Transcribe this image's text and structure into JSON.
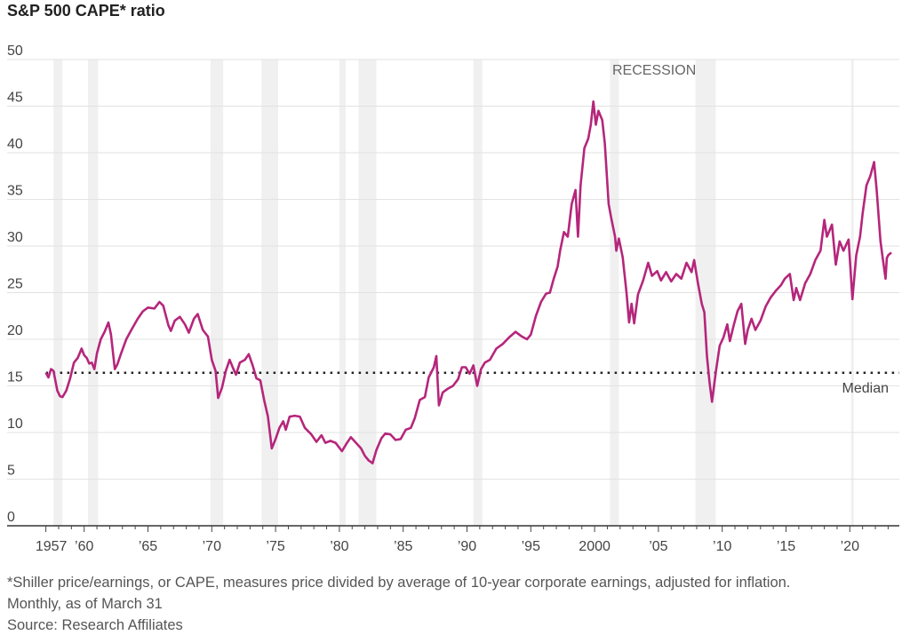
{
  "chart_data": {
    "type": "line",
    "title": "S&P 500 CAPE* ratio",
    "xlabel": "",
    "ylabel": "",
    "xlim": [
      1957,
      2023.25
    ],
    "ylim": [
      0,
      50
    ],
    "y_ticks": [
      0,
      5,
      10,
      15,
      20,
      25,
      30,
      35,
      40,
      45,
      50
    ],
    "x_ticks": [
      {
        "year": 1957,
        "label": "1957"
      },
      {
        "year": 1960,
        "label": "’60"
      },
      {
        "year": 1965,
        "label": "’65"
      },
      {
        "year": 1970,
        "label": "’70"
      },
      {
        "year": 1975,
        "label": "’75"
      },
      {
        "year": 1980,
        "label": "’80"
      },
      {
        "year": 1985,
        "label": "’85"
      },
      {
        "year": 1990,
        "label": "’90"
      },
      {
        "year": 1995,
        "label": "’95"
      },
      {
        "year": 2000,
        "label": "2000"
      },
      {
        "year": 2005,
        "label": "’05"
      },
      {
        "year": 2010,
        "label": "’10"
      },
      {
        "year": 2015,
        "label": "’15"
      },
      {
        "year": 2020,
        "label": "’20"
      }
    ],
    "grid": true,
    "line_color": "#b5267b",
    "median": {
      "value": 16.4,
      "label": "Median"
    },
    "recession_label": "RECESSION",
    "recessions": [
      [
        1957.6,
        1958.3
      ],
      [
        1960.3,
        1961.1
      ],
      [
        1969.9,
        1970.9
      ],
      [
        1973.9,
        1975.2
      ],
      [
        1980.0,
        1980.5
      ],
      [
        1981.5,
        1982.9
      ],
      [
        1990.5,
        1991.2
      ],
      [
        2001.2,
        2001.9
      ],
      [
        2007.9,
        2009.5
      ],
      [
        2020.1,
        2020.3
      ]
    ],
    "series": [
      {
        "points": [
          [
            1957.0,
            16.4
          ],
          [
            1957.2,
            15.9
          ],
          [
            1957.4,
            16.8
          ],
          [
            1957.6,
            16.6
          ],
          [
            1957.9,
            14.5
          ],
          [
            1958.1,
            13.9
          ],
          [
            1958.3,
            13.8
          ],
          [
            1958.6,
            14.5
          ],
          [
            1958.9,
            15.8
          ],
          [
            1959.2,
            17.5
          ],
          [
            1959.5,
            18.0
          ],
          [
            1959.8,
            19.0
          ],
          [
            1960.0,
            18.3
          ],
          [
            1960.2,
            18.0
          ],
          [
            1960.4,
            17.4
          ],
          [
            1960.6,
            17.5
          ],
          [
            1960.8,
            16.8
          ],
          [
            1961.0,
            18.5
          ],
          [
            1961.3,
            20.0
          ],
          [
            1961.6,
            20.8
          ],
          [
            1961.9,
            21.8
          ],
          [
            1962.1,
            20.5
          ],
          [
            1962.4,
            16.8
          ],
          [
            1962.6,
            17.3
          ],
          [
            1962.9,
            18.5
          ],
          [
            1963.3,
            20.0
          ],
          [
            1963.7,
            21.0
          ],
          [
            1964.2,
            22.2
          ],
          [
            1964.6,
            23.0
          ],
          [
            1965.0,
            23.4
          ],
          [
            1965.5,
            23.3
          ],
          [
            1965.9,
            24.0
          ],
          [
            1966.2,
            23.6
          ],
          [
            1966.6,
            21.5
          ],
          [
            1966.8,
            20.9
          ],
          [
            1967.1,
            22.0
          ],
          [
            1967.5,
            22.4
          ],
          [
            1967.9,
            21.6
          ],
          [
            1968.2,
            20.7
          ],
          [
            1968.6,
            22.2
          ],
          [
            1968.9,
            22.7
          ],
          [
            1969.3,
            21.0
          ],
          [
            1969.7,
            20.3
          ],
          [
            1970.0,
            17.8
          ],
          [
            1970.3,
            16.6
          ],
          [
            1970.5,
            13.7
          ],
          [
            1970.8,
            14.8
          ],
          [
            1971.1,
            16.6
          ],
          [
            1971.4,
            17.8
          ],
          [
            1971.7,
            16.8
          ],
          [
            1971.9,
            16.2
          ],
          [
            1972.2,
            17.5
          ],
          [
            1972.6,
            17.8
          ],
          [
            1972.9,
            18.4
          ],
          [
            1973.2,
            17.2
          ],
          [
            1973.5,
            15.8
          ],
          [
            1973.8,
            15.6
          ],
          [
            1974.1,
            13.5
          ],
          [
            1974.4,
            11.7
          ],
          [
            1974.7,
            8.3
          ],
          [
            1975.0,
            9.3
          ],
          [
            1975.3,
            10.5
          ],
          [
            1975.6,
            11.2
          ],
          [
            1975.8,
            10.3
          ],
          [
            1976.1,
            11.7
          ],
          [
            1976.5,
            11.8
          ],
          [
            1976.9,
            11.7
          ],
          [
            1977.3,
            10.5
          ],
          [
            1977.8,
            9.8
          ],
          [
            1978.2,
            9.0
          ],
          [
            1978.6,
            9.7
          ],
          [
            1978.9,
            8.9
          ],
          [
            1979.3,
            9.1
          ],
          [
            1979.7,
            8.9
          ],
          [
            1980.2,
            8.0
          ],
          [
            1980.6,
            8.9
          ],
          [
            1980.9,
            9.5
          ],
          [
            1981.3,
            8.9
          ],
          [
            1981.7,
            8.3
          ],
          [
            1982.0,
            7.5
          ],
          [
            1982.3,
            7.0
          ],
          [
            1982.6,
            6.7
          ],
          [
            1982.9,
            8.1
          ],
          [
            1983.3,
            9.4
          ],
          [
            1983.6,
            9.9
          ],
          [
            1984.0,
            9.8
          ],
          [
            1984.4,
            9.2
          ],
          [
            1984.8,
            9.3
          ],
          [
            1985.2,
            10.3
          ],
          [
            1985.6,
            10.5
          ],
          [
            1985.9,
            11.5
          ],
          [
            1986.3,
            13.5
          ],
          [
            1986.7,
            13.8
          ],
          [
            1987.0,
            15.9
          ],
          [
            1987.4,
            17.0
          ],
          [
            1987.6,
            18.2
          ],
          [
            1987.8,
            12.9
          ],
          [
            1988.1,
            14.3
          ],
          [
            1988.5,
            14.7
          ],
          [
            1988.9,
            15.0
          ],
          [
            1989.3,
            15.7
          ],
          [
            1989.6,
            17.0
          ],
          [
            1989.9,
            17.0
          ],
          [
            1990.2,
            16.3
          ],
          [
            1990.5,
            17.2
          ],
          [
            1990.8,
            15.0
          ],
          [
            1991.1,
            16.8
          ],
          [
            1991.4,
            17.5
          ],
          [
            1991.8,
            17.8
          ],
          [
            1992.3,
            19.0
          ],
          [
            1992.8,
            19.5
          ],
          [
            1993.3,
            20.2
          ],
          [
            1993.8,
            20.8
          ],
          [
            1994.3,
            20.3
          ],
          [
            1994.7,
            20.0
          ],
          [
            1995.0,
            20.5
          ],
          [
            1995.4,
            22.5
          ],
          [
            1995.8,
            24.0
          ],
          [
            1996.2,
            24.9
          ],
          [
            1996.5,
            25.0
          ],
          [
            1996.8,
            26.5
          ],
          [
            1997.1,
            27.8
          ],
          [
            1997.3,
            29.5
          ],
          [
            1997.6,
            31.5
          ],
          [
            1997.9,
            31.0
          ],
          [
            1998.2,
            34.5
          ],
          [
            1998.5,
            36.0
          ],
          [
            1998.7,
            31.0
          ],
          [
            1998.9,
            36.5
          ],
          [
            1999.2,
            40.5
          ],
          [
            1999.5,
            41.5
          ],
          [
            1999.7,
            43.0
          ],
          [
            1999.9,
            45.5
          ],
          [
            2000.1,
            43.0
          ],
          [
            2000.3,
            44.5
          ],
          [
            2000.6,
            43.5
          ],
          [
            2000.8,
            41.0
          ],
          [
            2001.1,
            34.5
          ],
          [
            2001.3,
            33.0
          ],
          [
            2001.6,
            31.0
          ],
          [
            2001.7,
            29.5
          ],
          [
            2001.9,
            30.8
          ],
          [
            2002.2,
            28.8
          ],
          [
            2002.5,
            25.0
          ],
          [
            2002.7,
            21.8
          ],
          [
            2002.9,
            23.8
          ],
          [
            2003.1,
            21.7
          ],
          [
            2003.4,
            24.8
          ],
          [
            2003.8,
            26.3
          ],
          [
            2004.2,
            28.2
          ],
          [
            2004.5,
            26.8
          ],
          [
            2004.9,
            27.3
          ],
          [
            2005.2,
            26.3
          ],
          [
            2005.6,
            27.2
          ],
          [
            2006.0,
            26.2
          ],
          [
            2006.4,
            27.0
          ],
          [
            2006.8,
            26.5
          ],
          [
            2007.2,
            28.2
          ],
          [
            2007.6,
            27.2
          ],
          [
            2007.8,
            28.5
          ],
          [
            2008.1,
            26.0
          ],
          [
            2008.4,
            23.8
          ],
          [
            2008.6,
            22.9
          ],
          [
            2008.8,
            18.2
          ],
          [
            2009.0,
            15.5
          ],
          [
            2009.2,
            13.3
          ],
          [
            2009.5,
            16.5
          ],
          [
            2009.8,
            19.3
          ],
          [
            2010.1,
            20.2
          ],
          [
            2010.4,
            21.6
          ],
          [
            2010.6,
            19.8
          ],
          [
            2010.9,
            21.5
          ],
          [
            2011.2,
            23.0
          ],
          [
            2011.5,
            23.8
          ],
          [
            2011.8,
            19.5
          ],
          [
            2012.0,
            21.0
          ],
          [
            2012.3,
            22.2
          ],
          [
            2012.6,
            21.0
          ],
          [
            2013.0,
            22.0
          ],
          [
            2013.4,
            23.5
          ],
          [
            2013.8,
            24.5
          ],
          [
            2014.2,
            25.2
          ],
          [
            2014.6,
            25.8
          ],
          [
            2014.9,
            26.5
          ],
          [
            2015.3,
            27.0
          ],
          [
            2015.6,
            24.2
          ],
          [
            2015.8,
            25.5
          ],
          [
            2016.1,
            24.2
          ],
          [
            2016.5,
            26.0
          ],
          [
            2016.9,
            27.0
          ],
          [
            2017.3,
            28.5
          ],
          [
            2017.7,
            29.5
          ],
          [
            2018.0,
            32.8
          ],
          [
            2018.2,
            31.0
          ],
          [
            2018.6,
            32.3
          ],
          [
            2018.9,
            28.0
          ],
          [
            2019.2,
            30.5
          ],
          [
            2019.5,
            29.5
          ],
          [
            2019.9,
            30.7
          ],
          [
            2020.2,
            24.3
          ],
          [
            2020.5,
            29.0
          ],
          [
            2020.8,
            31.0
          ],
          [
            2021.0,
            33.5
          ],
          [
            2021.3,
            36.5
          ],
          [
            2021.6,
            37.5
          ],
          [
            2021.9,
            39.0
          ],
          [
            2022.1,
            36.0
          ],
          [
            2022.4,
            30.5
          ],
          [
            2022.6,
            28.5
          ],
          [
            2022.8,
            26.5
          ],
          [
            2022.9,
            28.7
          ],
          [
            2023.0,
            29.0
          ],
          [
            2023.25,
            29.3
          ]
        ]
      }
    ]
  },
  "footnotes": {
    "note": "*Shiller price/earnings, or CAPE, measures price divided by average of 10-year corporate earnings, adjusted for inflation.",
    "frequency": "Monthly, as of March 31",
    "source": "Source: Research Affiliates"
  }
}
